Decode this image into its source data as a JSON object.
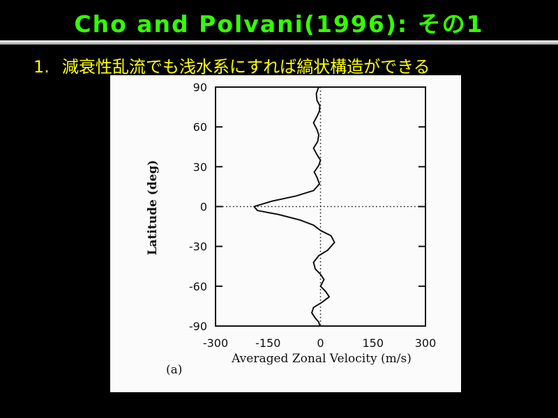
{
  "slide": {
    "title": "Cho  and  Polvani(1996):  その1",
    "bullet_number": "1.",
    "bullet_text": "減衰性乱流でも浅水系にすれば縞状構造ができる"
  },
  "colors": {
    "background": "#000000",
    "title": "#33ff00",
    "bullet": "#ffff00",
    "figure_bg": "#fbfbfb",
    "ink": "#111111"
  },
  "chart_data": {
    "type": "line",
    "title": "",
    "panel_label": "(a)",
    "xlabel": "Averaged Zonal Velocity (m/s)",
    "ylabel": "Latitude (deg)",
    "xlim": [
      -300,
      300
    ],
    "ylim": [
      -90,
      90
    ],
    "xticks": [
      -300,
      -150,
      0,
      150,
      300
    ],
    "xtick_labels": [
      "-300",
      "-150",
      "0",
      "150",
      "300"
    ],
    "yticks": [
      90,
      60,
      30,
      0,
      -30,
      -60,
      -90
    ],
    "ytick_labels": [
      "90",
      "60",
      "30",
      "0",
      "-30",
      "-60",
      "-90"
    ],
    "grid": false,
    "reference_lines": {
      "x": 0,
      "y": 0,
      "style": "dotted"
    },
    "series": [
      {
        "points": [
          [
            -5,
            90
          ],
          [
            -8,
            88
          ],
          [
            -12,
            85
          ],
          [
            -10,
            80
          ],
          [
            -2,
            76
          ],
          [
            -3,
            72
          ],
          [
            -10,
            68
          ],
          [
            -20,
            63
          ],
          [
            -10,
            58
          ],
          [
            -5,
            54
          ],
          [
            -8,
            49
          ],
          [
            -20,
            44
          ],
          [
            -10,
            39
          ],
          [
            0,
            35
          ],
          [
            -5,
            31
          ],
          [
            -18,
            26
          ],
          [
            -10,
            22
          ],
          [
            -3,
            17
          ],
          [
            -20,
            12
          ],
          [
            -70,
            8
          ],
          [
            -140,
            4
          ],
          [
            -190,
            0
          ],
          [
            -180,
            -3
          ],
          [
            -120,
            -6
          ],
          [
            -60,
            -10
          ],
          [
            -20,
            -14
          ],
          [
            0,
            -18
          ],
          [
            30,
            -22
          ],
          [
            40,
            -27
          ],
          [
            20,
            -33
          ],
          [
            -5,
            -37
          ],
          [
            -20,
            -42
          ],
          [
            -15,
            -47
          ],
          [
            0,
            -51
          ],
          [
            10,
            -55
          ],
          [
            0,
            -60
          ],
          [
            15,
            -64
          ],
          [
            25,
            -68
          ],
          [
            5,
            -72
          ],
          [
            -20,
            -76
          ],
          [
            -25,
            -80
          ],
          [
            -15,
            -84
          ],
          [
            -5,
            -87
          ],
          [
            -2,
            -90
          ]
        ]
      }
    ]
  }
}
